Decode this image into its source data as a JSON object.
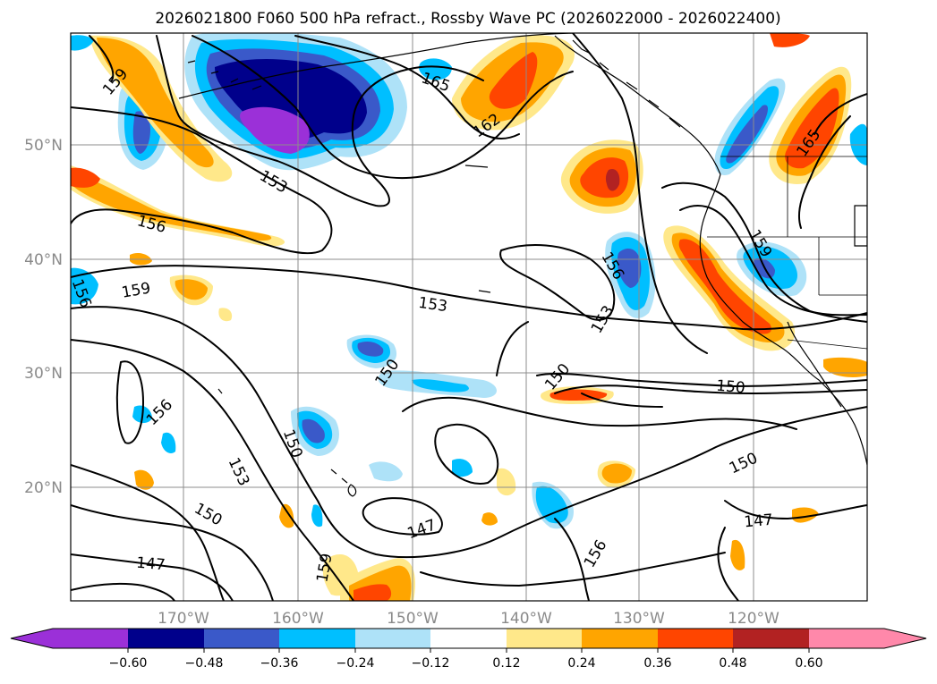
{
  "title": "2026021800 F060 500 hPa refract., Rossby Wave PC (2026022000 - 2026022400)",
  "map": {
    "lat_labels": [
      "50°N",
      "40°N",
      "30°N",
      "20°N"
    ],
    "lon_labels": [
      "170°W",
      "160°W",
      "150°W",
      "140°W",
      "130°W",
      "120°W"
    ]
  },
  "colorbar": {
    "tick_labels": [
      "−0.60",
      "−0.48",
      "−0.36",
      "−0.24",
      "−0.12",
      "0.12",
      "0.24",
      "0.36",
      "0.48",
      "0.60"
    ],
    "colors": {
      "neg_extend": "#9b30d8",
      "neg_060_048": "#00008b",
      "neg_048_036": "#3a59c9",
      "neg_036_024": "#00bfff",
      "neg_024_012": "#aee2f8",
      "neutral": "#ffffff",
      "pos_012_024": "#ffe88a",
      "pos_024_036": "#ffa500",
      "pos_036_048": "#ff4500",
      "pos_048_060": "#b22222",
      "pos_extend": "#ff88aa"
    }
  },
  "contour_labels": [
    "159",
    "165",
    "162",
    "165",
    "153",
    "156",
    "159",
    "156",
    "159",
    "156",
    "153",
    "153",
    "150",
    "150",
    "150",
    "156",
    "150",
    "153",
    "150",
    "147",
    "159",
    "156",
    "150",
    "147",
    "147"
  ]
}
